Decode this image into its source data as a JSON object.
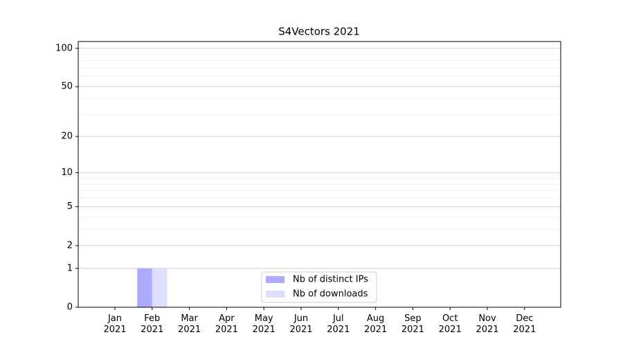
{
  "chart_data": {
    "type": "bar",
    "title": "S4Vectors 2021",
    "categories": [
      "Jan\n2021",
      "Feb\n2021",
      "Mar\n2021",
      "Apr\n2021",
      "May\n2021",
      "Jun\n2021",
      "Jul\n2021",
      "Aug\n2021",
      "Sep\n2021",
      "Oct\n2021",
      "Nov\n2021",
      "Dec\n2021"
    ],
    "series": [
      {
        "name": "Nb of distinct IPs",
        "color": "#aaaaff",
        "values": [
          0,
          1,
          0,
          0,
          0,
          0,
          0,
          0,
          0,
          0,
          0,
          0
        ]
      },
      {
        "name": "Nb of downloads",
        "color": "#ddddff",
        "values": [
          0,
          1,
          0,
          0,
          0,
          0,
          0,
          0,
          0,
          0,
          0,
          0
        ]
      }
    ],
    "yscale": "log1p",
    "ylim": [
      0,
      113
    ],
    "yticks": [
      0,
      1,
      2,
      5,
      10,
      20,
      50,
      100
    ],
    "minor_yticks": [
      3,
      4,
      6,
      7,
      8,
      9,
      30,
      40,
      60,
      70,
      80,
      90
    ],
    "grid": true,
    "legend": "lower center"
  }
}
